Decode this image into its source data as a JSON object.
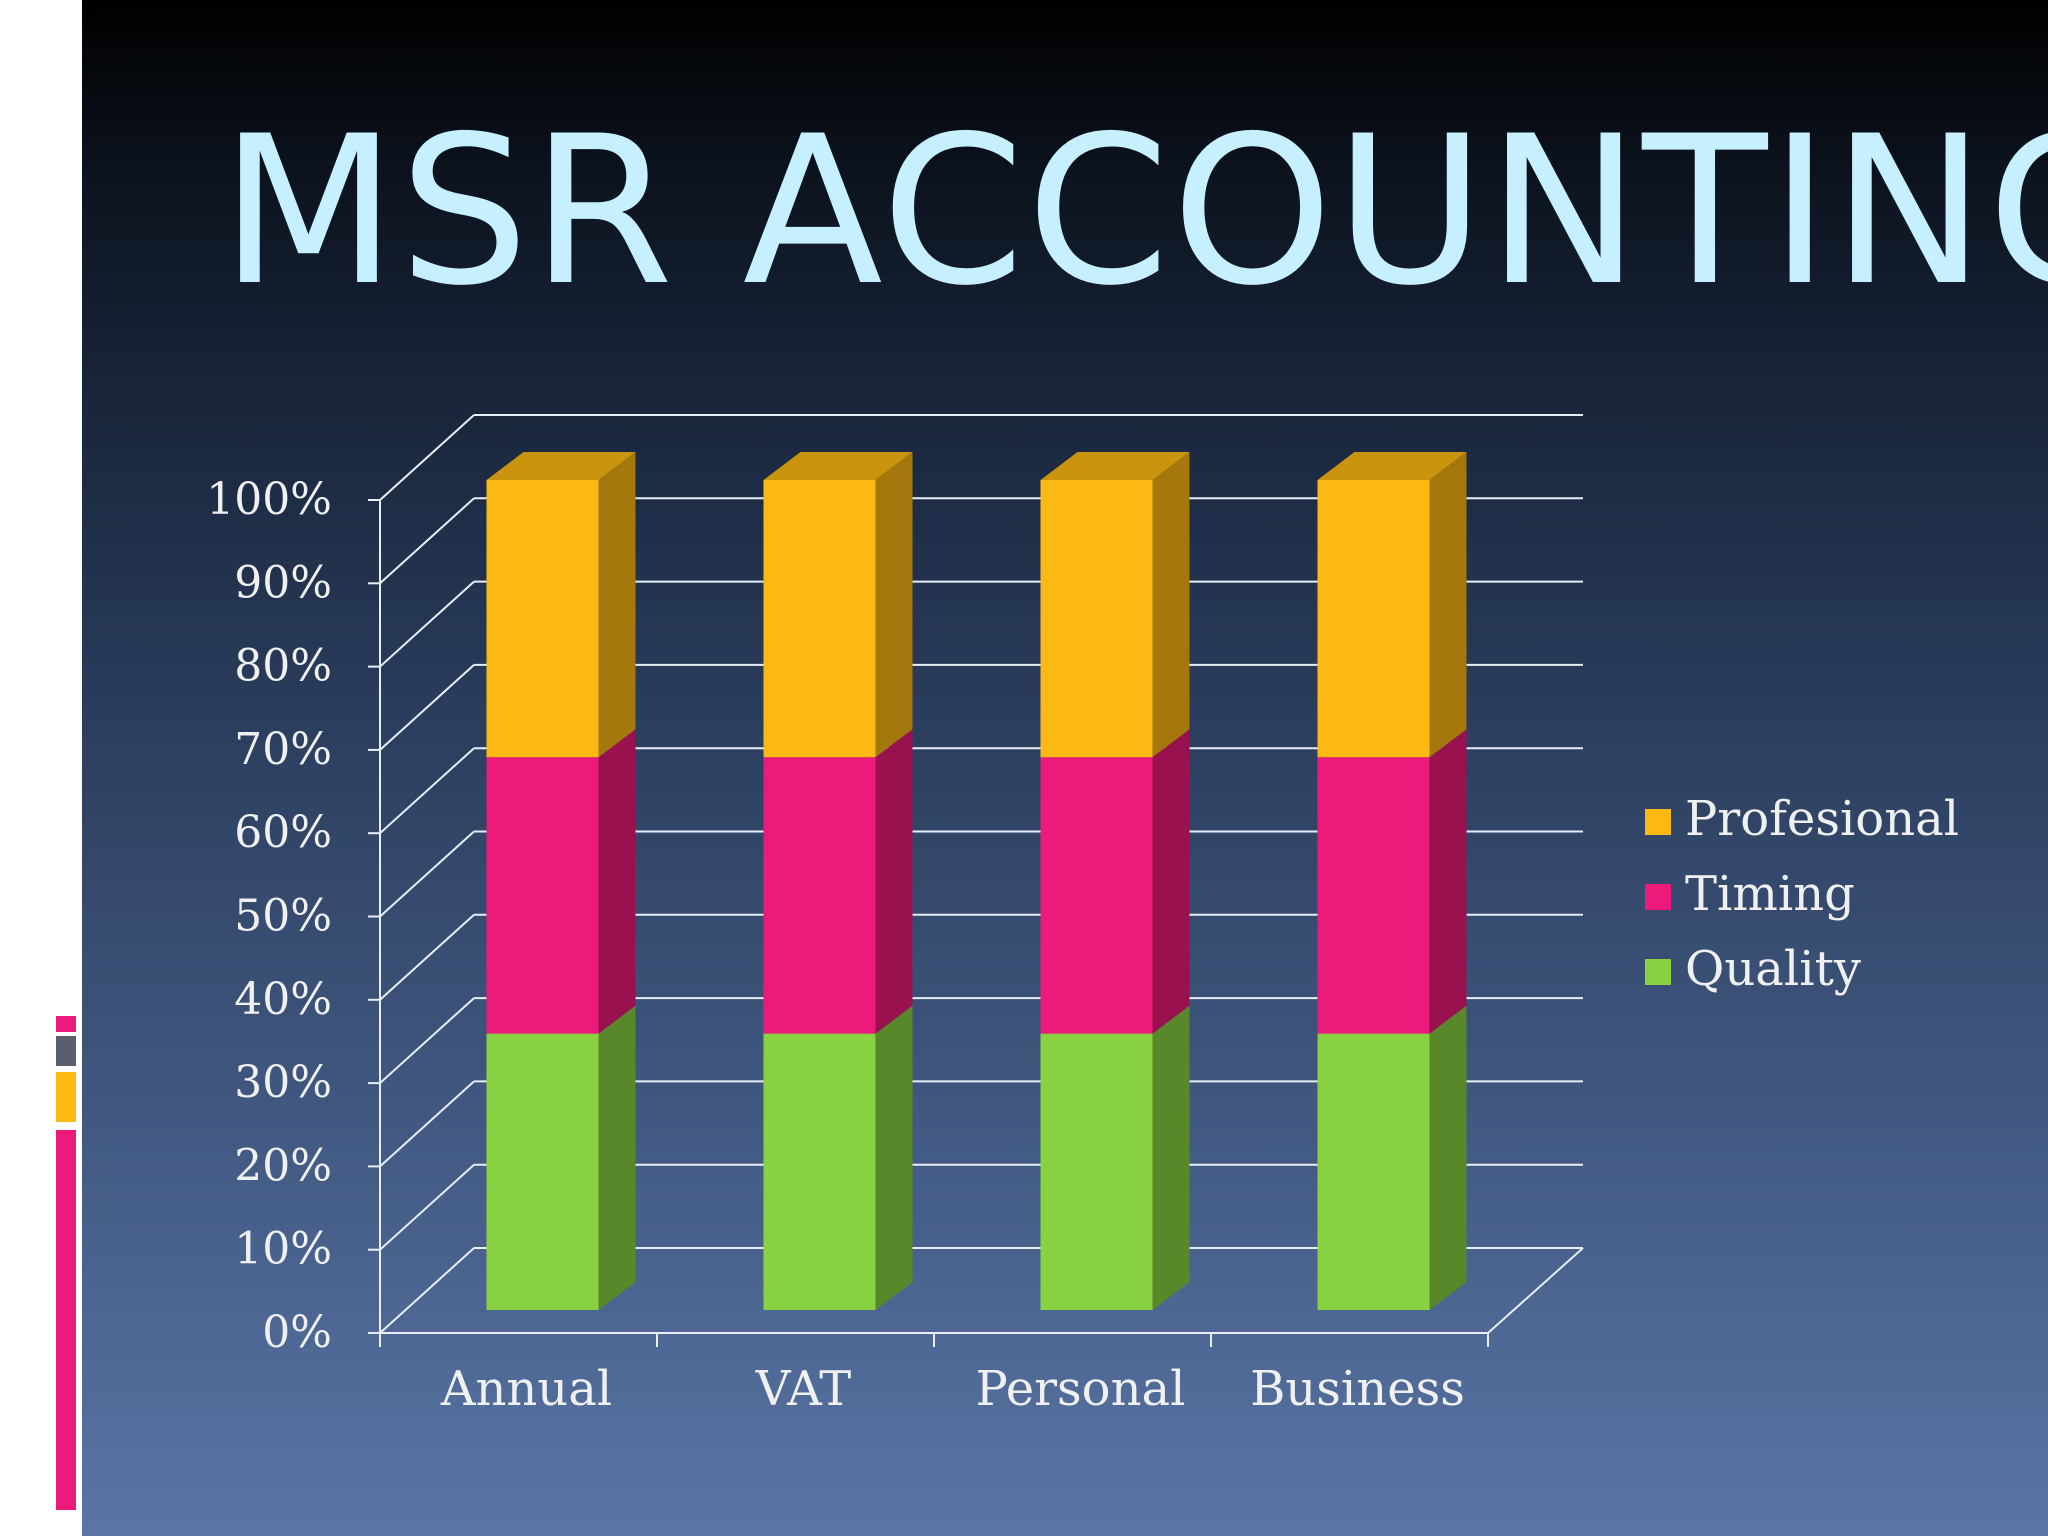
{
  "slide": {
    "title": "MSR ACCOUNTING"
  },
  "colors": {
    "profesional": "#fdb913",
    "timing": "#ec1a7a",
    "quality": "#88d140",
    "title": "#c6f0ff"
  },
  "chart_data": {
    "type": "bar",
    "stacked": "percent",
    "categories": [
      "Annual",
      "VAT",
      "Personal",
      "Business"
    ],
    "series": [
      {
        "name": "Quality",
        "color": "#88d140",
        "values": [
          33.3,
          33.3,
          33.3,
          33.3
        ]
      },
      {
        "name": "Timing",
        "color": "#ec1a7a",
        "values": [
          33.3,
          33.3,
          33.3,
          33.3
        ]
      },
      {
        "name": "Profesional",
        "color": "#fdb913",
        "values": [
          33.4,
          33.4,
          33.4,
          33.4
        ]
      }
    ],
    "legend_order": [
      "Profesional",
      "Timing",
      "Quality"
    ],
    "y_ticks": [
      "0%",
      "10%",
      "20%",
      "30%",
      "40%",
      "50%",
      "60%",
      "70%",
      "80%",
      "90%",
      "100%"
    ],
    "ylim": [
      0,
      100
    ],
    "grid": true,
    "legend_position": "right",
    "style": "3d"
  }
}
